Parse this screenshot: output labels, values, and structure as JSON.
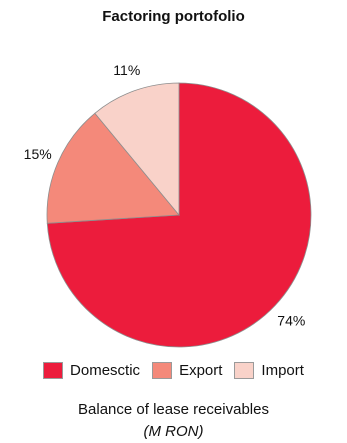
{
  "chart_data": {
    "type": "pie",
    "title": "Factoring portofolio",
    "categories": [
      "Domesctic",
      "Export",
      "Import"
    ],
    "values": [
      74,
      15,
      11
    ],
    "data_labels": [
      "74%",
      "15%",
      "11%"
    ],
    "colors": [
      "#ec1c3c",
      "#f4897a",
      "#f9d2c9"
    ],
    "legend_placement": "bottom",
    "caption": "Balance of lease receivables",
    "unit": "(M RON)"
  }
}
